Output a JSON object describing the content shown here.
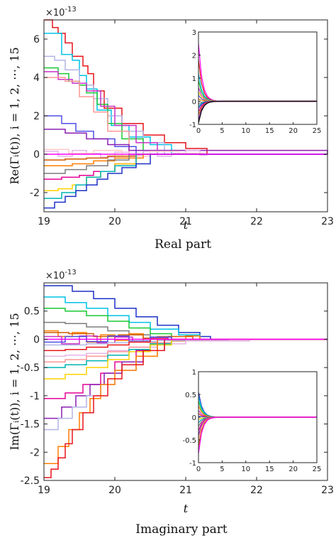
{
  "chart_data": [
    {
      "type": "line",
      "step": true,
      "caption": "Real part",
      "xlabel": "t",
      "ylabel": "Re(Γᵢ(t)), i = 1, 2, ⋯, 15",
      "multiplier": "×10",
      "multiplier_exp": "-13",
      "xlim": [
        19,
        23
      ],
      "ylim": [
        -3,
        7
      ],
      "xticks": [
        "19",
        "20",
        "21",
        "22",
        "23"
      ],
      "yticks": [
        "-2",
        "0",
        "2",
        "4",
        "6"
      ],
      "xtick_values": [
        19,
        20,
        21,
        22,
        23
      ],
      "ytick_values": [
        -2,
        0,
        2,
        4,
        6
      ],
      "converged_value": 0,
      "series": [
        {
          "color": "#e8151b",
          "x": [
            19,
            19.12,
            19.2,
            19.3,
            19.4,
            19.55,
            19.62,
            19.7,
            19.85,
            20.1,
            20.4,
            20.7,
            21.0,
            21.3,
            23
          ],
          "values": [
            7.0,
            6.6,
            6.3,
            5.8,
            5.1,
            4.6,
            4.2,
            3.3,
            2.4,
            1.6,
            1.0,
            0.6,
            0.3,
            0.0,
            0.0
          ]
        },
        {
          "color": "#00c3e6",
          "x": [
            19,
            19.25,
            19.4,
            19.5,
            19.6,
            19.75,
            19.95,
            20.2,
            20.5,
            20.8,
            23
          ],
          "values": [
            6.3,
            5.2,
            4.9,
            4.1,
            3.4,
            2.3,
            1.5,
            0.9,
            0.5,
            0.0,
            0.0
          ]
        },
        {
          "color": "#b4b4e6",
          "x": [
            19,
            19.15,
            19.3,
            19.5,
            19.7,
            19.9,
            20.1,
            20.4,
            20.7,
            23
          ],
          "values": [
            5.1,
            4.9,
            4.4,
            3.6,
            2.9,
            2.0,
            1.2,
            0.6,
            0.0,
            0.0
          ]
        },
        {
          "color": "#19c832",
          "x": [
            19,
            19.2,
            19.35,
            19.5,
            19.6,
            19.75,
            19.9,
            20.1,
            20.4,
            23
          ],
          "values": [
            4.5,
            4.2,
            3.8,
            3.6,
            3.2,
            2.6,
            1.6,
            0.8,
            0.0,
            0.0
          ]
        },
        {
          "color": "#c832c8",
          "x": [
            19,
            19.2,
            19.4,
            19.6,
            19.8,
            20.0,
            20.3,
            20.6,
            23
          ],
          "values": [
            4.3,
            3.9,
            3.7,
            3.3,
            2.5,
            1.5,
            0.6,
            0.0,
            0.0
          ]
        },
        {
          "color": "#ff9696",
          "x": [
            19,
            19.3,
            19.5,
            19.7,
            19.9,
            20.2,
            23
          ],
          "values": [
            4.0,
            3.8,
            3.0,
            2.2,
            1.2,
            0.0,
            0.0
          ]
        },
        {
          "color": "#5050e6",
          "x": [
            19,
            19.25,
            19.45,
            19.7,
            20.0,
            20.3,
            23
          ],
          "values": [
            2.0,
            1.6,
            1.2,
            0.8,
            0.4,
            0.0,
            0.0
          ]
        },
        {
          "color": "#8c1eb4",
          "x": [
            19,
            19.3,
            19.6,
            19.9,
            20.2,
            23
          ],
          "values": [
            1.3,
            1.1,
            0.8,
            0.5,
            0.2,
            0.0
          ]
        },
        {
          "color": "#e6b4e6",
          "x": [
            19,
            19.2,
            19.4,
            19.6,
            19.8,
            20.0,
            20.2,
            20.4,
            20.6,
            20.8,
            21.0,
            21.2,
            21.3,
            23
          ],
          "values": [
            0.15,
            -0.1,
            0.2,
            0.05,
            -0.15,
            0.1,
            -0.05,
            0.15,
            -0.1,
            0.05,
            0.2,
            -0.05,
            0.0,
            0.0
          ]
        },
        {
          "color": "#ffc8c8",
          "x": [
            19,
            19.35,
            19.7,
            20.1,
            20.5,
            20.9,
            21.25,
            23
          ],
          "values": [
            0.25,
            0.05,
            0.2,
            -0.1,
            0.15,
            0.05,
            0.0,
            0.0
          ]
        },
        {
          "color": "#d25a00",
          "x": [
            19,
            19.3,
            19.6,
            19.9,
            20.3,
            23
          ],
          "values": [
            -0.3,
            -0.25,
            -0.2,
            -0.1,
            0.0,
            0.0
          ]
        },
        {
          "color": "#ff7f00",
          "x": [
            19,
            19.4,
            19.7,
            20.0,
            20.4,
            23
          ],
          "values": [
            -0.6,
            -0.5,
            -0.35,
            -0.2,
            0.0,
            0.0
          ]
        },
        {
          "color": "#7d7d7d",
          "x": [
            19,
            19.3,
            19.6,
            19.9,
            20.2,
            23
          ],
          "values": [
            -1.0,
            -0.8,
            -0.6,
            -0.3,
            0.0,
            0.0
          ]
        },
        {
          "color": "#e60096",
          "x": [
            19,
            19.25,
            19.5,
            19.7,
            20.0,
            20.3,
            23
          ],
          "values": [
            -1.3,
            -1.2,
            -1.1,
            -0.9,
            -0.5,
            0.0,
            0.0
          ]
        },
        {
          "color": "#ffd200",
          "x": [
            19,
            19.2,
            19.4,
            19.6,
            19.8,
            20.0,
            20.3,
            23
          ],
          "values": [
            -1.9,
            -1.8,
            -1.6,
            -1.2,
            -0.9,
            -0.5,
            0.0,
            0.0
          ]
        },
        {
          "color": "#00b4b4",
          "x": [
            19,
            19.25,
            19.45,
            19.6,
            19.8,
            20.0,
            20.3,
            23
          ],
          "values": [
            -2.3,
            -2.0,
            -1.6,
            -1.2,
            -0.9,
            -0.6,
            0.0,
            0.0
          ]
        },
        {
          "color": "#1e32c8",
          "x": [
            19,
            19.15,
            19.3,
            19.45,
            19.6,
            19.75,
            19.9,
            20.1,
            20.3,
            20.5,
            23
          ],
          "values": [
            -2.8,
            -2.5,
            -2.2,
            -1.9,
            -1.6,
            -1.3,
            -1.0,
            -0.7,
            -0.5,
            0.0,
            0.0
          ]
        },
        {
          "color": "#ff00ff",
          "x": [
            19,
            23
          ],
          "values": [
            0.0,
            0.0
          ]
        }
      ],
      "inset": {
        "xlim": [
          0,
          25
        ],
        "ylim": [
          -1,
          3
        ],
        "xticks": [
          "0",
          "5",
          "10",
          "15",
          "20",
          "25"
        ],
        "yticks": [
          "-1",
          "0",
          "1",
          "2",
          "3"
        ],
        "xtick_values": [
          0,
          5,
          10,
          15,
          20,
          25
        ],
        "ytick_values": [
          -1,
          0,
          1,
          2,
          3
        ],
        "initial_values": [
          2.5,
          1.8,
          1.2,
          0.9,
          0.6,
          0.4,
          0.25,
          0.1,
          -0.1,
          -0.2,
          -0.3,
          -0.45,
          -0.6,
          -0.8,
          -0.95
        ],
        "colors": [
          "#ff00ff",
          "#e8151b",
          "#00c3e6",
          "#19c832",
          "#c832c8",
          "#ffd200",
          "#5050e6",
          "#ff7f00",
          "#7d7d7d",
          "#00b4b4",
          "#1e32c8",
          "#e60096",
          "#d25a00",
          "#8c1eb4",
          "#000000"
        ]
      }
    },
    {
      "type": "line",
      "step": true,
      "caption": "Imaginary part",
      "xlabel": "t",
      "ylabel": "Im(Γᵢ(t)), i = 1, 2, ⋯, 15",
      "multiplier": "×10",
      "multiplier_exp": "-13",
      "xlim": [
        19,
        23
      ],
      "ylim": [
        -2.5,
        1
      ],
      "xticks": [
        "19",
        "20",
        "21",
        "22",
        "23"
      ],
      "yticks": [
        "-2.5",
        "-2",
        "-1.5",
        "-1",
        "-0.5",
        "0",
        "0.5"
      ],
      "xtick_values": [
        19,
        20,
        21,
        22,
        23
      ],
      "ytick_values": [
        -2.5,
        -2,
        -1.5,
        -1,
        -0.5,
        0,
        0.5
      ],
      "converged_value": 0,
      "series": [
        {
          "color": "#1e32c8",
          "x": [
            19,
            19.4,
            19.7,
            20.0,
            20.3,
            20.6,
            20.9,
            21.2,
            21.35,
            23
          ],
          "values": [
            0.95,
            0.85,
            0.72,
            0.55,
            0.4,
            0.25,
            0.12,
            0.05,
            0.0,
            0.0
          ]
        },
        {
          "color": "#00c3e6",
          "x": [
            19,
            19.3,
            19.6,
            19.9,
            20.2,
            20.5,
            20.9,
            21.2,
            23
          ],
          "values": [
            0.75,
            0.65,
            0.55,
            0.42,
            0.3,
            0.18,
            0.08,
            0.0,
            0.0
          ]
        },
        {
          "color": "#19c832",
          "x": [
            19,
            19.3,
            19.6,
            19.9,
            20.2,
            20.5,
            20.8,
            23
          ],
          "values": [
            0.55,
            0.5,
            0.42,
            0.32,
            0.2,
            0.1,
            0.0,
            0.0
          ]
        },
        {
          "color": "#7d7d7d",
          "x": [
            19,
            19.3,
            19.6,
            19.9,
            20.2,
            20.5,
            23
          ],
          "values": [
            0.3,
            0.28,
            0.22,
            0.15,
            0.08,
            0.0,
            0.0
          ]
        },
        {
          "color": "#ff7f00",
          "x": [
            19,
            19.2,
            19.4,
            19.6,
            19.8,
            20.0,
            20.2,
            20.4,
            20.6,
            20.8,
            21.0,
            21.2,
            21.3,
            23
          ],
          "values": [
            0.15,
            0.05,
            0.12,
            -0.05,
            0.08,
            -0.02,
            0.1,
            -0.05,
            0.05,
            -0.03,
            0.06,
            -0.02,
            0.0,
            0.0
          ]
        },
        {
          "color": "#d25a00",
          "x": [
            19,
            19.35,
            19.7,
            20.05,
            20.4,
            20.75,
            21.1,
            23
          ],
          "values": [
            0.12,
            0.1,
            0.05,
            0.08,
            0.02,
            0.05,
            0.0,
            0.0
          ]
        },
        {
          "color": "#c832c8",
          "x": [
            19,
            19.25,
            19.5,
            19.75,
            20.0,
            20.25,
            20.5,
            20.75,
            21.0,
            23
          ],
          "values": [
            0.05,
            -0.08,
            0.06,
            -0.06,
            0.04,
            -0.04,
            0.03,
            -0.02,
            0.0,
            0.0
          ]
        },
        {
          "color": "#5050e6",
          "x": [
            19,
            19.3,
            19.6,
            19.9,
            20.2,
            20.5,
            20.8,
            21.1,
            23
          ],
          "values": [
            -0.05,
            0.05,
            -0.04,
            0.06,
            -0.03,
            0.04,
            -0.02,
            0.0,
            0.0
          ]
        },
        {
          "color": "#b4b4e6",
          "x": [
            19,
            19.3,
            19.6,
            19.9,
            20.2,
            20.6,
            21.0,
            21.6,
            23
          ],
          "values": [
            -0.1,
            -0.1,
            -0.08,
            -0.06,
            -0.04,
            -0.02,
            -0.01,
            0.0,
            0.0
          ]
        },
        {
          "color": "#e8151b",
          "x": [
            19,
            19.3,
            19.6,
            19.9,
            20.2,
            20.5,
            23
          ],
          "values": [
            -0.2,
            -0.18,
            -0.14,
            -0.1,
            -0.05,
            0.0,
            0.0
          ]
        },
        {
          "color": "#e6b4e6",
          "x": [
            19,
            19.3,
            19.6,
            19.9,
            20.2,
            20.6,
            21.0,
            21.9,
            23
          ],
          "values": [
            -0.3,
            -0.28,
            -0.25,
            -0.2,
            -0.14,
            -0.08,
            -0.03,
            0.0,
            0.0
          ]
        },
        {
          "color": "#ff9696",
          "x": [
            19,
            19.3,
            19.6,
            19.9,
            20.2,
            20.5,
            20.8,
            23
          ],
          "values": [
            -0.4,
            -0.36,
            -0.3,
            -0.22,
            -0.14,
            -0.06,
            0.0,
            0.0
          ]
        },
        {
          "color": "#00b4b4",
          "x": [
            19,
            19.3,
            19.6,
            19.9,
            20.2,
            20.5,
            20.8,
            23
          ],
          "values": [
            -0.5,
            -0.45,
            -0.38,
            -0.28,
            -0.18,
            -0.08,
            0.0,
            0.0
          ]
        },
        {
          "color": "#ffd200",
          "x": [
            19,
            19.3,
            19.6,
            19.9,
            20.2,
            20.5,
            20.8,
            23
          ],
          "values": [
            -0.7,
            -0.62,
            -0.5,
            -0.36,
            -0.22,
            -0.1,
            0.0,
            0.0
          ]
        },
        {
          "color": "#e60096",
          "x": [
            19,
            19.3,
            19.55,
            19.8,
            20.0,
            20.3,
            20.6,
            23
          ],
          "values": [
            -1.05,
            -0.95,
            -0.8,
            -0.6,
            -0.4,
            -0.2,
            0.0,
            0.0
          ]
        },
        {
          "color": "#8c1eb4",
          "x": [
            19,
            19.25,
            19.45,
            19.65,
            19.85,
            20.1,
            20.4,
            20.7,
            23
          ],
          "values": [
            -1.4,
            -1.2,
            -1.0,
            -0.8,
            -0.6,
            -0.4,
            -0.2,
            0.0,
            0.0
          ]
        },
        {
          "color": "#b4b4e6",
          "x": [
            19,
            19.2,
            19.4,
            19.6,
            19.8,
            20.0,
            20.3,
            20.6,
            23
          ],
          "values": [
            -1.6,
            -1.4,
            -1.2,
            -1.0,
            -0.8,
            -0.55,
            -0.3,
            0.0,
            0.0
          ]
        },
        {
          "color": "#ff7f00",
          "x": [
            19,
            19.2,
            19.35,
            19.5,
            19.65,
            19.8,
            20.0,
            20.3,
            20.6,
            23
          ],
          "values": [
            -2.2,
            -1.9,
            -1.6,
            -1.3,
            -1.05,
            -0.8,
            -0.55,
            -0.3,
            0.0,
            0.0
          ]
        },
        {
          "color": "#e8151b",
          "x": [
            19,
            19.1,
            19.2,
            19.3,
            19.4,
            19.55,
            19.7,
            19.9,
            20.1,
            20.4,
            20.7,
            23
          ],
          "values": [
            -2.45,
            -2.3,
            -2.1,
            -1.85,
            -1.6,
            -1.3,
            -1.0,
            -0.7,
            -0.45,
            -0.2,
            0.0,
            0.0
          ]
        },
        {
          "color": "#ff00ff",
          "x": [
            19,
            23
          ],
          "values": [
            0.0,
            0.0
          ]
        }
      ],
      "inset": {
        "xlim": [
          0,
          25
        ],
        "ylim": [
          -1,
          1
        ],
        "xticks": [
          "0",
          "5",
          "10",
          "15",
          "20",
          "25"
        ],
        "yticks": [
          "-1",
          "-0.5",
          "0",
          "0.5",
          "1"
        ],
        "xtick_values": [
          0,
          5,
          10,
          15,
          20,
          25
        ],
        "ytick_values": [
          -1,
          -0.5,
          0,
          0.5,
          1
        ],
        "initial_values": [
          0.55,
          0.45,
          0.35,
          0.25,
          0.15,
          0.08,
          0.02,
          -0.05,
          -0.12,
          -0.2,
          -0.3,
          -0.4,
          -0.5,
          -0.65,
          -0.8
        ],
        "colors": [
          "#1e32c8",
          "#00c3e6",
          "#19c832",
          "#ff7f00",
          "#c832c8",
          "#e8151b",
          "#5050e6",
          "#ffd200",
          "#00b4b4",
          "#7d7d7d",
          "#e60096",
          "#8c1eb4",
          "#ff9696",
          "#d25a00",
          "#ff00ff"
        ]
      }
    }
  ]
}
